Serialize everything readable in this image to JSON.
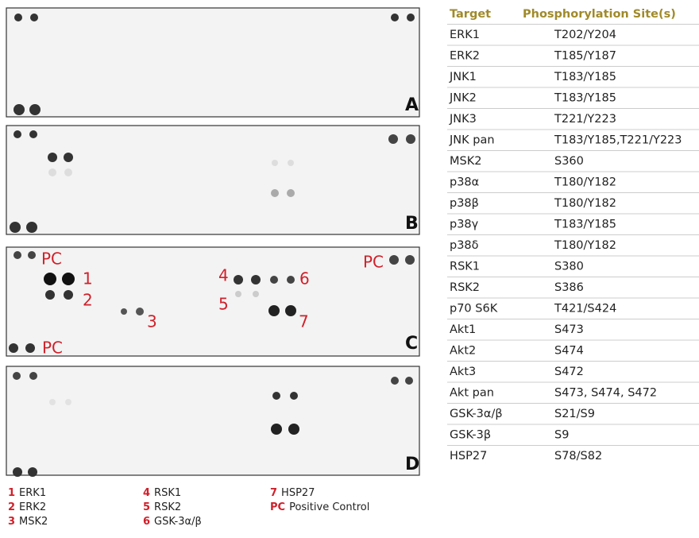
{
  "panels": [
    "A",
    "B",
    "C",
    "D"
  ],
  "annotations": {
    "pc_top_left": "PC",
    "pc_top_right": "PC",
    "pc_bottom_left": "PC",
    "n1": "1",
    "n2": "2",
    "n3": "3",
    "n4": "4",
    "n5": "5",
    "n6": "6",
    "n7": "7"
  },
  "legend": [
    {
      "key": "1",
      "label": "ERK1"
    },
    {
      "key": "2",
      "label": "ERK2"
    },
    {
      "key": "3",
      "label": "MSK2"
    },
    {
      "key": "4",
      "label": "RSK1"
    },
    {
      "key": "5",
      "label": "RSK2"
    },
    {
      "key": "6",
      "label": "GSK-3α/β"
    },
    {
      "key": "7",
      "label": "HSP27"
    },
    {
      "key": "PC",
      "label": "Positive Control"
    }
  ],
  "table": {
    "header": [
      "Target",
      "Phosphorylation Site(s)"
    ],
    "rows": [
      [
        "ERK1",
        "T202/Y204"
      ],
      [
        "ERK2",
        "T185/Y187"
      ],
      [
        "JNK1",
        "T183/Y185"
      ],
      [
        "JNK2",
        "T183/Y185"
      ],
      [
        "JNK3",
        "T221/Y223"
      ],
      [
        "JNK pan",
        "T183/Y185,T221/Y223"
      ],
      [
        "MSK2",
        "S360"
      ],
      [
        "p38α",
        "T180/Y182"
      ],
      [
        "p38β",
        "T180/Y182"
      ],
      [
        "p38γ",
        "T183/Y185"
      ],
      [
        "p38δ",
        "T180/Y182"
      ],
      [
        "RSK1",
        "S380"
      ],
      [
        "RSK2",
        "S386"
      ],
      [
        "p70 S6K",
        "T421/S424"
      ],
      [
        "Akt1",
        "S473"
      ],
      [
        "Akt2",
        "S474"
      ],
      [
        "Akt3",
        "S472"
      ],
      [
        "Akt pan",
        "S473, S474, S472"
      ],
      [
        "GSK-3α/β",
        "S21/S9"
      ],
      [
        "GSK-3β",
        "S9"
      ],
      [
        "HSP27",
        "S78/S82"
      ]
    ]
  }
}
